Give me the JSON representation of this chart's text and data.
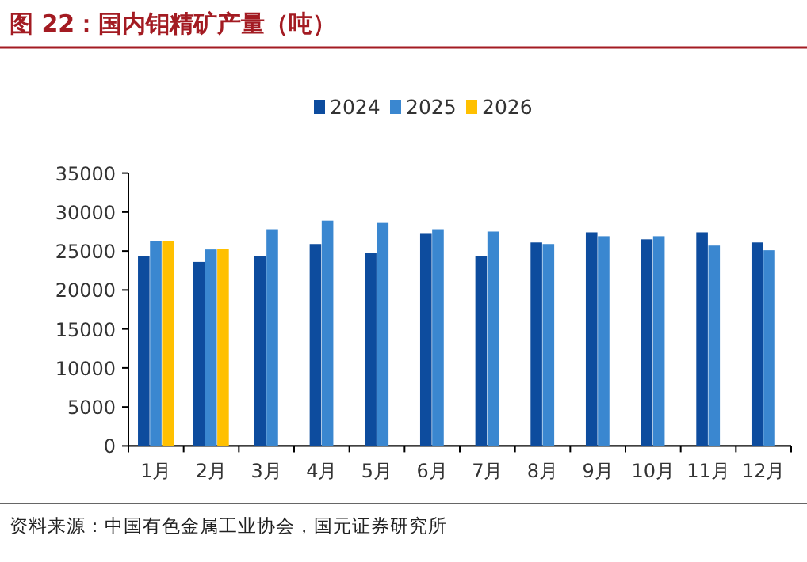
{
  "chart_data": {
    "type": "bar",
    "title": "图 22：国内钼精矿产量（吨）",
    "categories": [
      "1月",
      "2月",
      "3月",
      "4月",
      "5月",
      "6月",
      "7月",
      "8月",
      "9月",
      "10月",
      "11月",
      "12月"
    ],
    "series": [
      {
        "name": "2024",
        "color": "#0d4c9e",
        "values": [
          24300,
          23600,
          24400,
          25900,
          24800,
          27300,
          24400,
          26100,
          27400,
          26500,
          27400,
          26100
        ]
      },
      {
        "name": "2025",
        "color": "#3a87d0",
        "values": [
          26300,
          25200,
          27800,
          28900,
          28600,
          27800,
          27500,
          25900,
          26900,
          26900,
          25700,
          25100
        ]
      },
      {
        "name": "2026",
        "color": "#ffc000",
        "values": [
          26300,
          25300,
          null,
          null,
          null,
          null,
          null,
          null,
          null,
          null,
          null,
          null
        ]
      }
    ],
    "ylim": [
      0,
      35000
    ],
    "yticks": [
      0,
      5000,
      10000,
      15000,
      20000,
      25000,
      30000,
      35000
    ],
    "grid": false,
    "legend": "top",
    "annotations": [
      "资料来源：中国有色金属工业协会，国元证券研究所"
    ]
  }
}
